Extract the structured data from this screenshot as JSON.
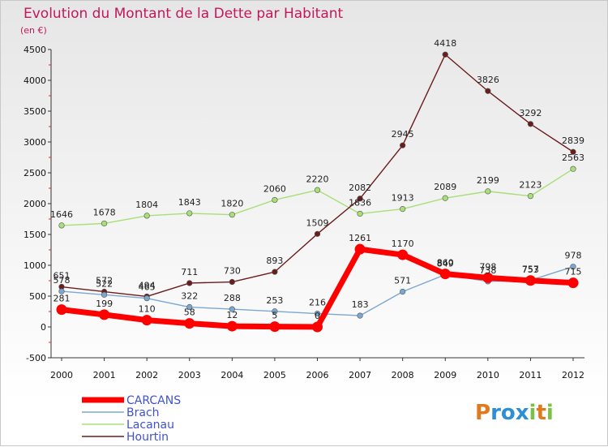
{
  "colors": {
    "CARCANS": "#ff0000",
    "Brach": "#7ba7d1",
    "Lacanau": "#a8df78",
    "Hourtin": "#6b1c1c",
    "title": "#c2185b",
    "legend": "#3f51d6"
  },
  "chart_data": {
    "type": "line",
    "title": "Evolution du Montant de la Dette par Habitant",
    "subtitle": "(en €)",
    "x": [
      "2000",
      "2001",
      "2002",
      "2003",
      "2004",
      "2005",
      "2006",
      "2007",
      "2008",
      "2009",
      "2010",
      "2011",
      "2012"
    ],
    "ylim": [
      -500,
      4500
    ],
    "yticks": [
      -500,
      0,
      500,
      1000,
      1500,
      2000,
      2500,
      3000,
      3500,
      4000,
      4500
    ],
    "grid": false,
    "legend_position": "bottom-left",
    "series": [
      {
        "name": "CARCANS",
        "values": [
          281,
          199,
          110,
          58,
          12,
          5,
          0,
          1261,
          1170,
          860,
          798,
          753,
          715
        ]
      },
      {
        "name": "Brach",
        "values": [
          578,
          522,
          465,
          322,
          288,
          253,
          216,
          183,
          571,
          849,
          738,
          757,
          978
        ]
      },
      {
        "name": "Lacanau",
        "values": [
          1646,
          1678,
          1804,
          1843,
          1820,
          2060,
          2220,
          1836,
          1913,
          2089,
          2199,
          2123,
          2563
        ]
      },
      {
        "name": "Hourtin",
        "values": [
          651,
          572,
          494,
          711,
          730,
          893,
          1509,
          2082,
          2945,
          4418,
          3826,
          3292,
          2839
        ]
      }
    ]
  },
  "logo": {
    "text": "Proxiti"
  }
}
